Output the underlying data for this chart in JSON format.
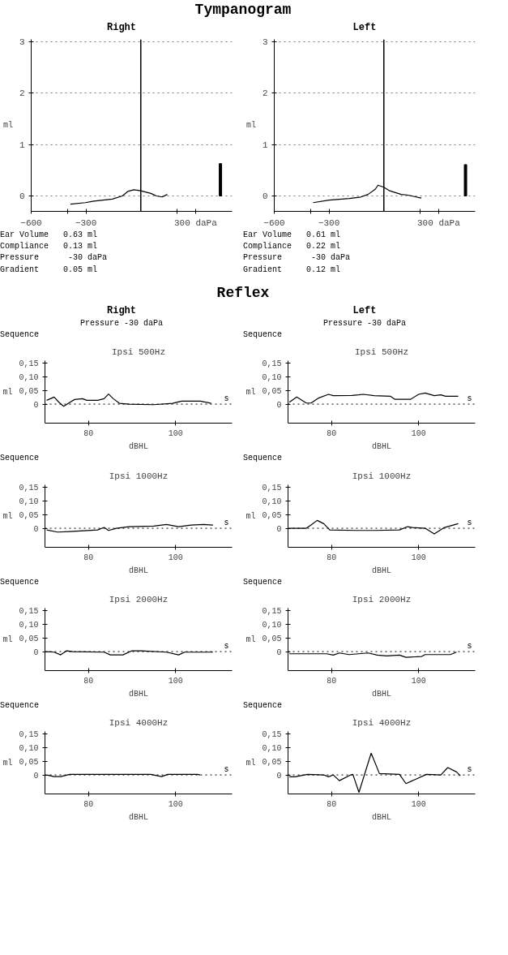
{
  "chart_data": [
    {
      "type": "line",
      "title": "Tympanogram",
      "subtitle": "Right",
      "ylabel": "ml",
      "xlim": [
        -600,
        500
      ],
      "ylim": [
        -0.3,
        3.05
      ],
      "xticks": [
        -600,
        -300,
        {
          "value": 300,
          "label": "300 daPa"
        },
        {
          "value": -400,
          "label": null
        },
        {
          "value": 200,
          "label": null
        }
      ],
      "yticks": [
        0,
        1,
        2,
        3
      ],
      "grid": "y",
      "ref_lines": [
        {
          "axis": "x",
          "value": 0,
          "line_style": "solid"
        }
      ],
      "series": [
        {
          "type": "line",
          "color": "#000000",
          "x": [
            -385,
            -304,
            -257,
            -156,
            -101,
            -70,
            -39,
            0,
            55,
            86,
            117,
            145
          ],
          "values": [
            -0.16,
            -0.13,
            -0.1,
            -0.06,
            0,
            0.09,
            0.12,
            0.1,
            0.05,
            0,
            -0.02,
            0.03
          ]
        },
        {
          "type": "bar",
          "color": "#000000",
          "x": [
            436
          ],
          "values": [
            0.63
          ]
        }
      ],
      "annotations": [
        "Ear Volume   0.63 ml",
        "Compliance   0.13 ml",
        "Pressure      -30 daPa",
        "Gradient     0.05 ml"
      ]
    },
    {
      "type": "line",
      "subtitle": "Left",
      "ylabel": "ml",
      "xlim": [
        -600,
        500
      ],
      "ylim": [
        -0.3,
        3.05
      ],
      "xticks": [
        -600,
        -300,
        {
          "value": 300,
          "label": "300 daPa"
        },
        {
          "value": -400,
          "label": null
        },
        {
          "value": 200,
          "label": null
        }
      ],
      "yticks": [
        0,
        1,
        2,
        3
      ],
      "grid": "y",
      "ref_lines": [
        {
          "axis": "x",
          "value": 0,
          "line_style": "solid"
        }
      ],
      "series": [
        {
          "type": "line",
          "color": "#000000",
          "x": [
            -387,
            -300,
            -189,
            -126,
            -87,
            -47,
            -32,
            0,
            32,
            95,
            126,
            205
          ],
          "values": [
            -0.13,
            -0.08,
            -0.05,
            -0.02,
            0.03,
            0.13,
            0.21,
            0.17,
            0.1,
            0.03,
            0.02,
            -0.04
          ]
        },
        {
          "type": "bar",
          "color": "#000000",
          "x": [
            447
          ],
          "values": [
            0.61
          ]
        }
      ],
      "annotations": [
        "Ear Volume   0.61 ml",
        "Compliance   0.22 ml",
        "Pressure      -30 daPa",
        "Gradient     0.12 ml"
      ]
    },
    {
      "type": "line",
      "title": "Ipsi 500Hz",
      "subtitle": "Sequence",
      "xlabel": "dBHL",
      "ylabel": "ml",
      "xlim": [
        70,
        113
      ],
      "ylim": [
        -0.07,
        0.16
      ],
      "xticks": [
        80,
        100
      ],
      "yticks": [
        0,
        {
          "value": 0.05,
          "label": "0,05"
        },
        {
          "value": 0.1,
          "label": "0,10"
        },
        {
          "value": 0.15,
          "label": "0,15"
        }
      ],
      "ref_lines": [
        {
          "axis": "y",
          "value": 0,
          "line_style": "dotted"
        }
      ],
      "series": [
        {
          "color": "#000000",
          "x": [
            70.4,
            72.1,
            73.2,
            74.3,
            75.4,
            76.8,
            78.6,
            79.6,
            82.1,
            83.6,
            84.6,
            85.7,
            87.1,
            89.3,
            95,
            99.3,
            101.4,
            105.7,
            108.2
          ],
          "values": [
            0.014,
            0.026,
            0.007,
            -0.008,
            0.003,
            0.017,
            0.02,
            0.014,
            0.014,
            0.02,
            0.037,
            0.02,
            0.003,
            0,
            -0.002,
            0.003,
            0.011,
            0.011,
            0.003
          ]
        }
      ],
      "annotations": [
        "Reflex",
        "Right",
        "Pressure -30 daPa",
        "s"
      ]
    },
    {
      "type": "line",
      "title": "Ipsi 500Hz",
      "subtitle": "Sequence",
      "xlabel": "dBHL",
      "ylabel": "ml",
      "xlim": [
        70,
        113
      ],
      "ylim": [
        -0.07,
        0.16
      ],
      "xticks": [
        80,
        100
      ],
      "yticks": [
        0,
        {
          "value": 0.05,
          "label": "0,05"
        },
        {
          "value": 0.1,
          "label": "0,10"
        },
        {
          "value": 0.15,
          "label": "0,15"
        }
      ],
      "ref_lines": [
        {
          "axis": "y",
          "value": 0,
          "line_style": "dotted"
        }
      ],
      "series": [
        {
          "color": "#000000",
          "x": [
            70.3,
            72,
            74.2,
            75.3,
            77.1,
            79.3,
            80.4,
            84.7,
            86.2,
            87.3,
            89.8,
            93.5,
            94.5,
            98.2,
            100,
            101.5,
            103.6,
            105.1,
            106.2,
            109.1
          ],
          "values": [
            0.007,
            0.026,
            0.004,
            0.004,
            0.023,
            0.036,
            0.031,
            0.032,
            0.034,
            0.036,
            0.031,
            0.029,
            0.018,
            0.018,
            0.036,
            0.041,
            0.031,
            0.034,
            0.029,
            0.029
          ]
        }
      ],
      "annotations": [
        "Left",
        "Pressure -30 daPa",
        "s"
      ]
    },
    {
      "type": "line",
      "title": "Ipsi 1000Hz",
      "subtitle": "Sequence",
      "xlabel": "dBHL",
      "ylabel": "ml",
      "xlim": [
        70,
        113
      ],
      "ylim": [
        -0.07,
        0.16
      ],
      "xticks": [
        80,
        100
      ],
      "yticks": [
        0,
        {
          "value": 0.05,
          "label": "0,05"
        },
        {
          "value": 0.1,
          "label": "0,10"
        },
        {
          "value": 0.15,
          "label": "0,15"
        }
      ],
      "ref_lines": [
        {
          "axis": "y",
          "value": 0,
          "line_style": "dotted"
        }
      ],
      "series": [
        {
          "color": "#000000",
          "x": [
            70.4,
            72.9,
            75.7,
            82.1,
            83.6,
            84.6,
            86.4,
            89.3,
            95,
            97.9,
            100.7,
            103.6,
            106.4,
            108.6
          ],
          "values": [
            -0.006,
            -0.014,
            -0.012,
            -0.006,
            0.003,
            -0.008,
            0,
            0.006,
            0.008,
            0.014,
            0.006,
            0.012,
            0.014,
            0.012
          ]
        }
      ],
      "annotations": [
        "s"
      ]
    },
    {
      "type": "line",
      "title": "Ipsi 1000Hz",
      "subtitle": "Sequence",
      "xlabel": "dBHL",
      "ylabel": "ml",
      "xlim": [
        70,
        113
      ],
      "ylim": [
        -0.07,
        0.16
      ],
      "xticks": [
        80,
        100
      ],
      "yticks": [
        0,
        {
          "value": 0.05,
          "label": "0,05"
        },
        {
          "value": 0.1,
          "label": "0,10"
        },
        {
          "value": 0.15,
          "label": "0,15"
        }
      ],
      "ref_lines": [
        {
          "axis": "y",
          "value": 0,
          "line_style": "dotted"
        }
      ],
      "series": [
        {
          "color": "#000000",
          "x": [
            70.3,
            74.2,
            75.3,
            76.7,
            78.2,
            79.6,
            85.5,
            89.8,
            95.6,
            97.5,
            98.5,
            101.5,
            103.6,
            105.8,
            109.1
          ],
          "values": [
            0,
            0,
            0.012,
            0.029,
            0.017,
            -0.006,
            -0.008,
            -0.008,
            -0.006,
            0.006,
            0.003,
            0,
            -0.021,
            0.002,
            0.017
          ]
        }
      ],
      "annotations": [
        "s"
      ]
    },
    {
      "type": "line",
      "title": "Ipsi 2000Hz",
      "subtitle": "Sequence",
      "xlabel": "dBHL",
      "ylabel": "ml",
      "xlim": [
        70,
        113
      ],
      "ylim": [
        -0.07,
        0.16
      ],
      "xticks": [
        80,
        100
      ],
      "yticks": [
        0,
        {
          "value": 0.05,
          "label": "0,05"
        },
        {
          "value": 0.1,
          "label": "0,10"
        },
        {
          "value": 0.15,
          "label": "0,15"
        }
      ],
      "ref_lines": [
        {
          "axis": "y",
          "value": 0,
          "line_style": "dotted"
        }
      ],
      "series": [
        {
          "color": "#000000",
          "x": [
            70.4,
            72.1,
            73.6,
            75,
            76.4,
            83.6,
            85,
            87.9,
            90,
            92.1,
            97.9,
            100.7,
            102.1,
            108.6
          ],
          "values": [
            0,
            -0.002,
            -0.012,
            0.003,
            0,
            -0.002,
            -0.012,
            -0.012,
            0.003,
            0.003,
            -0.002,
            -0.012,
            -0.002,
            -0.002
          ]
        }
      ],
      "annotations": [
        "s"
      ]
    },
    {
      "type": "line",
      "title": "Ipsi 2000Hz",
      "subtitle": "Sequence",
      "xlabel": "dBHL",
      "ylabel": "ml",
      "xlim": [
        70,
        113
      ],
      "ylim": [
        -0.07,
        0.16
      ],
      "xticks": [
        80,
        100
      ],
      "yticks": [
        0,
        {
          "value": 0.05,
          "label": "0,05"
        },
        {
          "value": 0.1,
          "label": "0,10"
        },
        {
          "value": 0.15,
          "label": "0,15"
        }
      ],
      "ref_lines": [
        {
          "axis": "y",
          "value": 0,
          "line_style": "dotted"
        }
      ],
      "series": [
        {
          "color": "#000000",
          "x": [
            70.3,
            78.9,
            80.4,
            81.8,
            84,
            88.4,
            90.5,
            92.7,
            95.6,
            97.1,
            100.7,
            101.5,
            107.3,
            108.7
          ],
          "values": [
            -0.008,
            -0.008,
            -0.013,
            -0.005,
            -0.011,
            -0.005,
            -0.013,
            -0.016,
            -0.013,
            -0.021,
            -0.018,
            -0.011,
            -0.011,
            -0.002
          ]
        }
      ],
      "annotations": [
        "s"
      ]
    },
    {
      "type": "line",
      "title": "Ipsi 4000Hz",
      "subtitle": "Sequence",
      "xlabel": "dBHL",
      "ylabel": "ml",
      "xlim": [
        70,
        113
      ],
      "ylim": [
        -0.07,
        0.16
      ],
      "xticks": [
        80,
        100
      ],
      "yticks": [
        0,
        {
          "value": 0.05,
          "label": "0,05"
        },
        {
          "value": 0.1,
          "label": "0,10"
        },
        {
          "value": 0.15,
          "label": "0,15"
        }
      ],
      "ref_lines": [
        {
          "axis": "y",
          "value": 0,
          "line_style": "dotted"
        }
      ],
      "series": [
        {
          "color": "#000000",
          "x": [
            70.4,
            72.1,
            73.6,
            75.7,
            89.3,
            94.3,
            96.8,
            98.2,
            105,
            105.7
          ],
          "values": [
            0,
            -0.006,
            -0.006,
            0.002,
            0.002,
            0.002,
            -0.006,
            0.002,
            0.002,
            0
          ]
        }
      ],
      "annotations": [
        "s"
      ]
    },
    {
      "type": "line",
      "title": "Ipsi 4000Hz",
      "subtitle": "Sequence",
      "xlabel": "dBHL",
      "ylabel": "ml",
      "xlim": [
        70,
        113
      ],
      "ylim": [
        -0.07,
        0.16
      ],
      "xticks": [
        80,
        100
      ],
      "yticks": [
        0,
        {
          "value": 0.05,
          "label": "0,05"
        },
        {
          "value": 0.1,
          "label": "0,10"
        },
        {
          "value": 0.15,
          "label": "0,15"
        }
      ],
      "ref_lines": [
        {
          "axis": "y",
          "value": 0,
          "line_style": "dotted"
        }
      ],
      "series": [
        {
          "color": "#000000",
          "x": [
            70.3,
            71.6,
            74.5,
            78.2,
            79.3,
            80.4,
            81.8,
            84.4,
            84.9,
            86.3,
            89.1,
            91,
            95.6,
            97.1,
            99.3,
            101.8,
            105.1,
            106.7,
            108.7,
            109.6
          ],
          "values": [
            -0.007,
            -0.007,
            0.002,
            0,
            -0.007,
            0,
            -0.021,
            0,
            0.002,
            -0.064,
            0.08,
            0.005,
            0.002,
            -0.032,
            -0.016,
            0.002,
            0,
            0.027,
            0.011,
            -0.003
          ]
        }
      ],
      "annotations": [
        "s"
      ]
    }
  ]
}
